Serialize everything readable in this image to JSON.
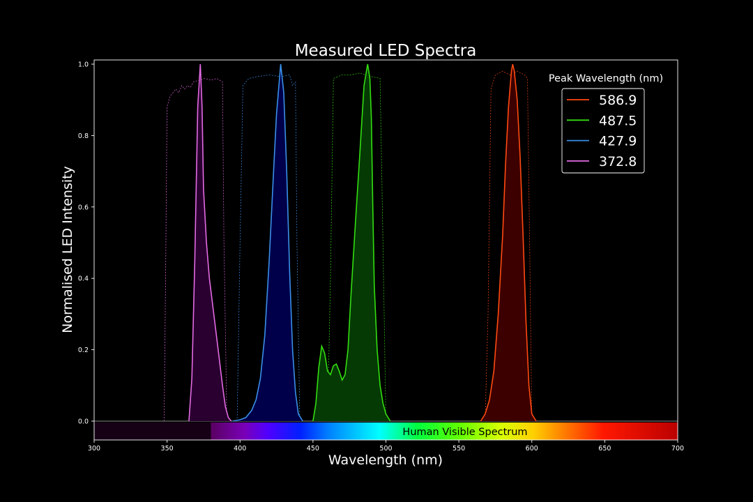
{
  "chart_data": {
    "type": "line",
    "title": "Measured LED Spectra",
    "xlabel": "Wavelength (nm)",
    "ylabel": "Normalised LED Intensity",
    "xlim": [
      300,
      700
    ],
    "ylim": [
      -0.05,
      1.02
    ],
    "xticks": [
      300,
      350,
      400,
      450,
      500,
      550,
      600,
      650,
      700
    ],
    "xtick_labels": [
      "300",
      "350",
      "400",
      "450",
      "500",
      "550",
      "600",
      "650",
      "700"
    ],
    "yticks": [
      0.0,
      0.2,
      0.4,
      0.6,
      0.8,
      1.0
    ],
    "ytick_labels": [
      "0.0",
      "0.2",
      "0.4",
      "0.6",
      "0.8",
      "1.0"
    ],
    "grid": false,
    "legend_title": "Peak Wavelength (nm)",
    "legend_position": "top-right",
    "spectrum_band_label": "Human Visible Spectrum",
    "spectrum_band_range": [
      380,
      700
    ],
    "series": [
      {
        "name": "586.9",
        "color": "#ff4a12",
        "fill": "#3d0000",
        "peak": 586.9,
        "points": [
          [
            565,
            0
          ],
          [
            568,
            0.02
          ],
          [
            571,
            0.06
          ],
          [
            574,
            0.14
          ],
          [
            577,
            0.3
          ],
          [
            580,
            0.52
          ],
          [
            582,
            0.72
          ],
          [
            584,
            0.88
          ],
          [
            586,
            0.98
          ],
          [
            586.9,
            1.0
          ],
          [
            588,
            0.98
          ],
          [
            590,
            0.9
          ],
          [
            592,
            0.74
          ],
          [
            594,
            0.52
          ],
          [
            596,
            0.28
          ],
          [
            598,
            0.1
          ],
          [
            600,
            0.02
          ],
          [
            603,
            0
          ]
        ],
        "filter_points": [
          [
            568,
            0
          ],
          [
            570,
            0.3
          ],
          [
            572,
            0.93
          ],
          [
            575,
            0.97
          ],
          [
            580,
            0.98
          ],
          [
            585,
            0.97
          ],
          [
            590,
            0.98
          ],
          [
            595,
            0.97
          ],
          [
            597,
            0.96
          ],
          [
            598.5,
            0.5
          ],
          [
            600,
            0
          ]
        ]
      },
      {
        "name": "487.5",
        "color": "#33dd11",
        "fill": "#053a05",
        "peak": 487.5,
        "points": [
          [
            450,
            0
          ],
          [
            452,
            0.05
          ],
          [
            454,
            0.15
          ],
          [
            456,
            0.21
          ],
          [
            458,
            0.19
          ],
          [
            460,
            0.14
          ],
          [
            462,
            0.13
          ],
          [
            464,
            0.155
          ],
          [
            466,
            0.16
          ],
          [
            468,
            0.14
          ],
          [
            470,
            0.115
          ],
          [
            472,
            0.13
          ],
          [
            474,
            0.2
          ],
          [
            476,
            0.35
          ],
          [
            479,
            0.55
          ],
          [
            482,
            0.74
          ],
          [
            485,
            0.94
          ],
          [
            487.5,
            1.0
          ],
          [
            489,
            0.96
          ],
          [
            490,
            0.85
          ],
          [
            491,
            0.6
          ],
          [
            492,
            0.38
          ],
          [
            494,
            0.2
          ],
          [
            496,
            0.1
          ],
          [
            498,
            0.05
          ],
          [
            500,
            0.02
          ],
          [
            503,
            0
          ]
        ],
        "filter_points": [
          [
            460,
            0
          ],
          [
            462,
            0.4
          ],
          [
            464,
            0.96
          ],
          [
            470,
            0.97
          ],
          [
            476,
            0.97
          ],
          [
            482,
            0.975
          ],
          [
            490,
            0.965
          ],
          [
            496,
            0.96
          ],
          [
            498,
            0.5
          ],
          [
            500,
            0
          ]
        ]
      },
      {
        "name": "427.9",
        "color": "#3a8fe8",
        "fill": "#00004a",
        "peak": 427.9,
        "points": [
          [
            395,
            0
          ],
          [
            400,
            0.004
          ],
          [
            404,
            0.01
          ],
          [
            408,
            0.03
          ],
          [
            411,
            0.06
          ],
          [
            414,
            0.12
          ],
          [
            417,
            0.24
          ],
          [
            420,
            0.45
          ],
          [
            423,
            0.7
          ],
          [
            425,
            0.86
          ],
          [
            427.9,
            1.0
          ],
          [
            430,
            0.92
          ],
          [
            432,
            0.7
          ],
          [
            434,
            0.42
          ],
          [
            436,
            0.2
          ],
          [
            438,
            0.08
          ],
          [
            440,
            0.02
          ],
          [
            443,
            0
          ]
        ],
        "filter_points": [
          [
            398,
            0
          ],
          [
            400,
            0.5
          ],
          [
            402,
            0.94
          ],
          [
            406,
            0.96
          ],
          [
            412,
            0.965
          ],
          [
            420,
            0.97
          ],
          [
            428,
            0.965
          ],
          [
            434,
            0.97
          ],
          [
            436,
            0.94
          ],
          [
            438,
            0.95
          ],
          [
            439,
            0.5
          ],
          [
            441,
            0
          ]
        ]
      },
      {
        "name": "372.8",
        "color": "#e36be3",
        "fill": "#2a0030",
        "peak": 372.8,
        "points": [
          [
            365,
            0
          ],
          [
            367,
            0.12
          ],
          [
            369,
            0.45
          ],
          [
            371,
            0.88
          ],
          [
            372.8,
            1.0
          ],
          [
            374,
            0.88
          ],
          [
            375,
            0.65
          ],
          [
            377,
            0.5
          ],
          [
            379,
            0.4
          ],
          [
            382,
            0.3
          ],
          [
            385,
            0.2
          ],
          [
            388,
            0.1
          ],
          [
            390,
            0.04
          ],
          [
            392,
            0.01
          ],
          [
            394,
            0
          ]
        ],
        "filter_points": [
          [
            348,
            0
          ],
          [
            349,
            0.4
          ],
          [
            350,
            0.88
          ],
          [
            352,
            0.91
          ],
          [
            354,
            0.92
          ],
          [
            356,
            0.93
          ],
          [
            358,
            0.92
          ],
          [
            360,
            0.94
          ],
          [
            362,
            0.93
          ],
          [
            364,
            0.94
          ],
          [
            366,
            0.935
          ],
          [
            368,
            0.95
          ],
          [
            372,
            0.955
          ],
          [
            376,
            0.96
          ],
          [
            380,
            0.955
          ],
          [
            384,
            0.96
          ],
          [
            386,
            0.955
          ],
          [
            388,
            0.95
          ],
          [
            389,
            0.5
          ],
          [
            391,
            0
          ]
        ]
      }
    ]
  }
}
